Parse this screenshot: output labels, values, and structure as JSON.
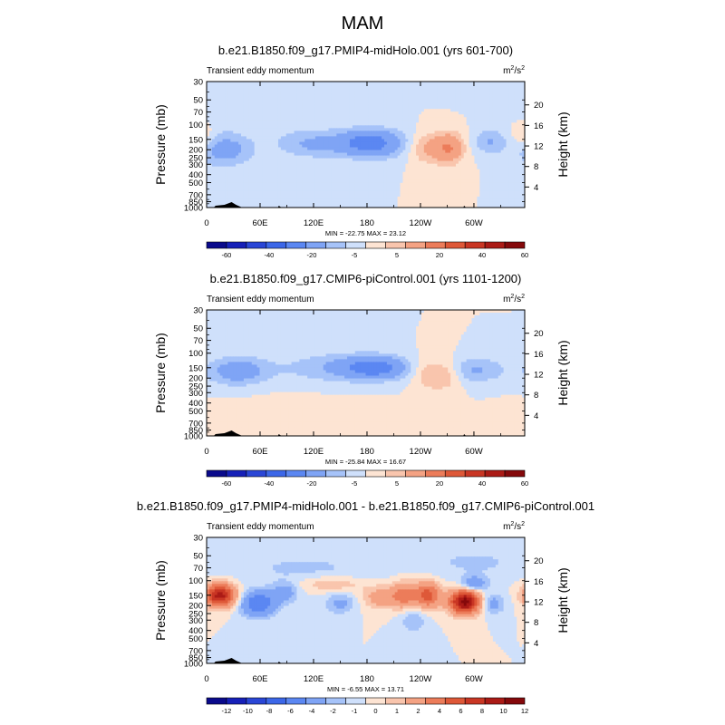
{
  "figure": {
    "title": "MAM"
  },
  "chart_data": [
    {
      "type": "heatmap",
      "title": "b.e21.B1850.f09_g17.PMIP4-midHolo.001 (yrs 601-700)",
      "left_label": "Transient eddy momentum",
      "units": "m²/s²",
      "units_base": "m",
      "units_sup1": "2",
      "units_mid": "/s",
      "units_sup2": "2",
      "xlabel": "",
      "ylabel": "Pressure (mb)",
      "ylabel_right": "Height (km)",
      "x_ticks": [
        "0",
        "60E",
        "120E",
        "180",
        "120W",
        "60W"
      ],
      "x_tick_lon": [
        0,
        60,
        120,
        180,
        240,
        300
      ],
      "xlim": [
        0,
        357
      ],
      "y_ticks": [
        "30",
        "50",
        "70",
        "100",
        "150",
        "200",
        "250",
        "300",
        "400",
        "500",
        "700",
        "850",
        "1000"
      ],
      "y_tick_values": [
        30,
        50,
        70,
        100,
        150,
        200,
        250,
        300,
        400,
        500,
        700,
        850,
        1000
      ],
      "ylim": [
        1000,
        30
      ],
      "right_ticks": [
        "4",
        "8",
        "12",
        "16",
        "20"
      ],
      "right_tick_values": [
        4,
        8,
        12,
        16,
        20
      ],
      "min_max_text": "MIN = -22.75  MAX =  23.12",
      "min": -22.75,
      "max": 23.12,
      "colorbar_labels": [
        "-60",
        "-40",
        "-20",
        "-5",
        "5",
        "20",
        "40",
        "60"
      ],
      "levels": [
        -70,
        -60,
        -50,
        -40,
        -30,
        -20,
        -10,
        -5,
        0,
        5,
        10,
        20,
        30,
        40,
        50,
        60,
        70
      ],
      "colors": [
        "#0a0a8c",
        "#1620b8",
        "#2a46d6",
        "#3c67e8",
        "#5b87f2",
        "#7fa4f5",
        "#a6c3f9",
        "#cfe0fb",
        "#fde4d3",
        "#f9c5ad",
        "#f4a283",
        "#ec7c5a",
        "#de5838",
        "#c93624",
        "#ab1b16",
        "#85090b"
      ],
      "features": [
        {
          "lon": 20,
          "p": 200,
          "dlon": 22,
          "dp": 0.33,
          "v": -14
        },
        {
          "lon": 120,
          "p": 170,
          "dlon": 30,
          "dp": 0.28,
          "v": -11
        },
        {
          "lon": 180,
          "p": 165,
          "dlon": 22,
          "dp": 0.25,
          "v": -18
        },
        {
          "lon": 200,
          "p": 170,
          "dlon": 30,
          "dp": 0.3,
          "v": -9
        },
        {
          "lon": 245,
          "p": 190,
          "dlon": 14,
          "dp": 0.3,
          "v": 12
        },
        {
          "lon": 272,
          "p": 190,
          "dlon": 12,
          "dp": 0.3,
          "v": 20
        },
        {
          "lon": 318,
          "p": 160,
          "dlon": 14,
          "dp": 0.25,
          "v": -10
        },
        {
          "lon": 355,
          "p": 140,
          "dlon": 10,
          "dp": 0.25,
          "v": 7
        },
        {
          "lon": 60,
          "p": 70,
          "dlon": 50,
          "dp": 0.35,
          "v": -3
        }
      ]
    },
    {
      "type": "heatmap",
      "title": "b.e21.B1850.f09_g17.CMIP6-piControl.001 (yrs 1101-1200)",
      "left_label": "Transient eddy momentum",
      "units": "m²/s²",
      "units_base": "m",
      "units_sup1": "2",
      "units_mid": "/s",
      "units_sup2": "2",
      "xlabel": "",
      "ylabel": "Pressure (mb)",
      "ylabel_right": "Height (km)",
      "x_ticks": [
        "0",
        "60E",
        "120E",
        "180",
        "120W",
        "60W"
      ],
      "x_tick_lon": [
        0,
        60,
        120,
        180,
        240,
        300
      ],
      "xlim": [
        0,
        357
      ],
      "y_ticks": [
        "30",
        "50",
        "70",
        "100",
        "150",
        "200",
        "250",
        "300",
        "400",
        "500",
        "700",
        "850",
        "1000"
      ],
      "y_tick_values": [
        30,
        50,
        70,
        100,
        150,
        200,
        250,
        300,
        400,
        500,
        700,
        850,
        1000
      ],
      "ylim": [
        1000,
        30
      ],
      "right_ticks": [
        "4",
        "8",
        "12",
        "16",
        "20"
      ],
      "right_tick_values": [
        4,
        8,
        12,
        16,
        20
      ],
      "min_max_text": "MIN = -25.84  MAX =  16.67",
      "min": -25.84,
      "max": 16.67,
      "colorbar_labels": [
        "-60",
        "-40",
        "-20",
        "-5",
        "5",
        "20",
        "40",
        "60"
      ],
      "levels": [
        -70,
        -60,
        -50,
        -40,
        -30,
        -20,
        -10,
        -5,
        0,
        5,
        10,
        20,
        30,
        40,
        50,
        60,
        70
      ],
      "colors": [
        "#0a0a8c",
        "#1620b8",
        "#2a46d6",
        "#3c67e8",
        "#5b87f2",
        "#7fa4f5",
        "#a6c3f9",
        "#cfe0fb",
        "#fde4d3",
        "#f9c5ad",
        "#f4a283",
        "#ec7c5a",
        "#de5838",
        "#c93624",
        "#ab1b16",
        "#85090b"
      ],
      "features": [
        {
          "lon": 35,
          "p": 165,
          "dlon": 25,
          "dp": 0.28,
          "v": -15
        },
        {
          "lon": 140,
          "p": 150,
          "dlon": 40,
          "dp": 0.3,
          "v": -9
        },
        {
          "lon": 190,
          "p": 150,
          "dlon": 25,
          "dp": 0.22,
          "v": -24
        },
        {
          "lon": 248,
          "p": 180,
          "dlon": 12,
          "dp": 0.3,
          "v": 9
        },
        {
          "lon": 270,
          "p": 180,
          "dlon": 12,
          "dp": 0.3,
          "v": 10
        },
        {
          "lon": 300,
          "p": 160,
          "dlon": 25,
          "dp": 0.25,
          "v": -11
        },
        {
          "lon": 90,
          "p": 500,
          "dlon": 60,
          "dp": 0.5,
          "v": 1
        }
      ]
    },
    {
      "type": "heatmap",
      "title": "b.e21.B1850.f09_g17.PMIP4-midHolo.001 - b.e21.B1850.f09_g17.CMIP6-piControl.001",
      "left_label": "Transient eddy momentum",
      "units": "m²/s²",
      "units_base": "m",
      "units_sup1": "2",
      "units_mid": "/s",
      "units_sup2": "2",
      "xlabel": "",
      "ylabel": "Pressure (mb)",
      "ylabel_right": "Height (km)",
      "x_ticks": [
        "0",
        "60E",
        "120E",
        "180",
        "120W",
        "60W"
      ],
      "x_tick_lon": [
        0,
        60,
        120,
        180,
        240,
        300
      ],
      "xlim": [
        0,
        357
      ],
      "y_ticks": [
        "30",
        "50",
        "70",
        "100",
        "150",
        "200",
        "250",
        "300",
        "400",
        "500",
        "700",
        "850",
        "1000"
      ],
      "y_tick_values": [
        30,
        50,
        70,
        100,
        150,
        200,
        250,
        300,
        400,
        500,
        700,
        850,
        1000
      ],
      "ylim": [
        1000,
        30
      ],
      "right_ticks": [
        "4",
        "8",
        "12",
        "16",
        "20"
      ],
      "right_tick_values": [
        4,
        8,
        12,
        16,
        20
      ],
      "min_max_text": "MIN = -6.55  MAX =  13.71",
      "min": -6.55,
      "max": 13.71,
      "colorbar_labels": [
        "-12",
        "-10",
        "-8",
        "-6",
        "-4",
        "-2",
        "-1",
        "0",
        "1",
        "2",
        "4",
        "6",
        "8",
        "10",
        "12"
      ],
      "levels": [
        -14,
        -12,
        -10,
        -8,
        -6,
        -4,
        -2,
        -1,
        0,
        1,
        2,
        4,
        6,
        8,
        10,
        12,
        14
      ],
      "colors": [
        "#0a0a8c",
        "#1620b8",
        "#2a46d6",
        "#3c67e8",
        "#5b87f2",
        "#7fa4f5",
        "#a6c3f9",
        "#cfe0fb",
        "#fde4d3",
        "#f9c5ad",
        "#f4a283",
        "#ec7c5a",
        "#de5838",
        "#c93624",
        "#ab1b16",
        "#85090b"
      ],
      "features": [
        {
          "lon": 15,
          "p": 150,
          "dlon": 12,
          "dp": 0.22,
          "v": 11
        },
        {
          "lon": 58,
          "p": 190,
          "dlon": 14,
          "dp": 0.25,
          "v": -6
        },
        {
          "lon": 88,
          "p": 140,
          "dlon": 10,
          "dp": 0.2,
          "v": -3
        },
        {
          "lon": 140,
          "p": 110,
          "dlon": 25,
          "dp": 0.15,
          "v": 2
        },
        {
          "lon": 150,
          "p": 190,
          "dlon": 12,
          "dp": 0.2,
          "v": -2.5
        },
        {
          "lon": 195,
          "p": 160,
          "dlon": 14,
          "dp": 0.22,
          "v": 3
        },
        {
          "lon": 222,
          "p": 150,
          "dlon": 10,
          "dp": 0.25,
          "v": 5
        },
        {
          "lon": 248,
          "p": 150,
          "dlon": 10,
          "dp": 0.25,
          "v": 7
        },
        {
          "lon": 232,
          "p": 300,
          "dlon": 10,
          "dp": 0.25,
          "v": -2
        },
        {
          "lon": 290,
          "p": 180,
          "dlon": 12,
          "dp": 0.23,
          "v": 13
        },
        {
          "lon": 300,
          "p": 110,
          "dlon": 10,
          "dp": 0.15,
          "v": -4
        },
        {
          "lon": 320,
          "p": 190,
          "dlon": 10,
          "dp": 0.2,
          "v": -3
        },
        {
          "lon": 110,
          "p": 70,
          "dlon": 60,
          "dp": 0.3,
          "v": -1.2
        },
        {
          "lon": 300,
          "p": 60,
          "dlon": 40,
          "dp": 0.3,
          "v": -1.2
        }
      ]
    }
  ]
}
